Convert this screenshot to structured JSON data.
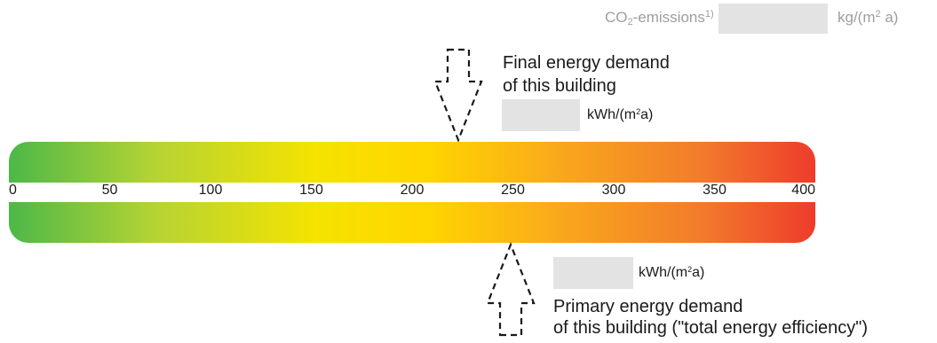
{
  "co2": {
    "label_main": "CO",
    "label_sub": "2",
    "label_rest": "-emissions",
    "label_footnote": "1)",
    "unit_main": "kg/(m",
    "unit_sup": "2",
    "unit_rest": " a)"
  },
  "final_energy": {
    "label_line1": "Final energy demand",
    "label_line2": "of this building",
    "unit_main": "kWh/(m",
    "unit_sup": "2",
    "unit_rest": "a)"
  },
  "primary_energy": {
    "label_line1": "Primary energy demand",
    "label_line2": "of this building (\"total energy efficiency\")",
    "unit_main": "kWh/(m",
    "unit_sup": "2",
    "unit_rest": "a)"
  },
  "scale": {
    "min": 0,
    "max": 400,
    "ticks": [
      "0",
      "50",
      "100",
      "150",
      "200",
      "250",
      "300",
      "350",
      "400"
    ],
    "gradient_colors": [
      "#4cb848",
      "#b5d334",
      "#f5e300",
      "#ffd500",
      "#f9a91b",
      "#f27b2c",
      "#ee3c2b"
    ]
  },
  "markers": {
    "final_energy_value": 223,
    "primary_energy_value": 249
  }
}
